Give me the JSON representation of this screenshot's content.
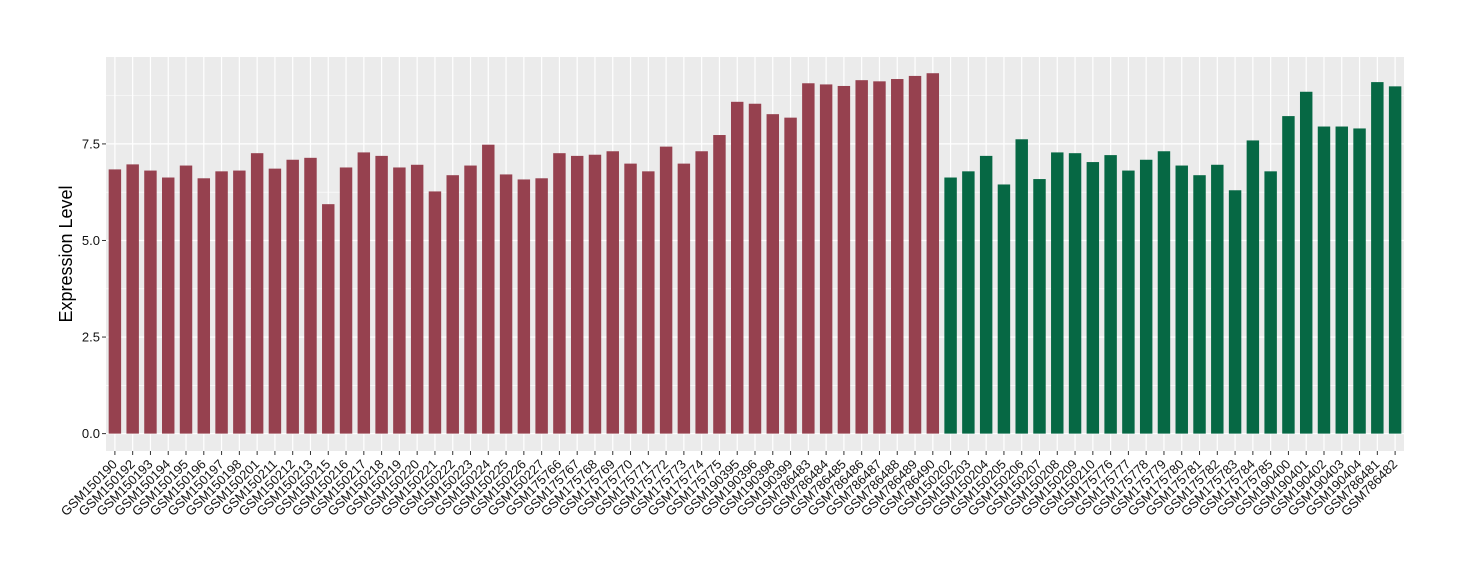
{
  "chart_data": {
    "type": "bar",
    "ylabel": "Expression Level",
    "xlabel": "",
    "ylim": [
      -0.45,
      9.75
    ],
    "yticks": [
      0.0,
      2.5,
      5.0,
      7.5
    ],
    "ytick_labels": [
      "0.0",
      "2.5",
      "5.0",
      "7.5"
    ],
    "grid": true,
    "legend": "none",
    "panel_background": "#ebebeb",
    "grid_color": "#ffffff",
    "colors": {
      "group1": "#96414f",
      "group2": "#066844"
    },
    "categories": [
      "GSM150190",
      "GSM150192",
      "GSM150193",
      "GSM150194",
      "GSM150195",
      "GSM150196",
      "GSM150197",
      "GSM150198",
      "GSM150201",
      "GSM150211",
      "GSM150212",
      "GSM150213",
      "GSM150215",
      "GSM150216",
      "GSM150217",
      "GSM150218",
      "GSM150219",
      "GSM150220",
      "GSM150221",
      "GSM150222",
      "GSM150223",
      "GSM150224",
      "GSM150225",
      "GSM150226",
      "GSM150227",
      "GSM175766",
      "GSM175767",
      "GSM175768",
      "GSM175769",
      "GSM175770",
      "GSM175771",
      "GSM175772",
      "GSM175773",
      "GSM175774",
      "GSM175775",
      "GSM190395",
      "GSM190396",
      "GSM190398",
      "GSM190399",
      "GSM786483",
      "GSM786484",
      "GSM786485",
      "GSM786486",
      "GSM786487",
      "GSM786488",
      "GSM786489",
      "GSM786490",
      "GSM150202",
      "GSM150203",
      "GSM150204",
      "GSM150205",
      "GSM150206",
      "GSM150207",
      "GSM150208",
      "GSM150209",
      "GSM150210",
      "GSM175776",
      "GSM175777",
      "GSM175778",
      "GSM175779",
      "GSM175780",
      "GSM175781",
      "GSM175782",
      "GSM175783",
      "GSM175784",
      "GSM175785",
      "GSM190400",
      "GSM190401",
      "GSM190402",
      "GSM190403",
      "GSM190404",
      "GSM786481",
      "GSM786482"
    ],
    "values": [
      6.84,
      6.97,
      6.81,
      6.63,
      6.94,
      6.61,
      6.79,
      6.81,
      7.26,
      6.86,
      7.09,
      7.14,
      5.94,
      6.89,
      7.28,
      7.19,
      6.89,
      6.96,
      6.27,
      6.69,
      6.94,
      7.48,
      6.71,
      6.58,
      6.61,
      7.26,
      7.19,
      7.22,
      7.31,
      6.99,
      6.79,
      7.43,
      6.99,
      7.31,
      7.73,
      8.59,
      8.54,
      8.27,
      8.18,
      9.07,
      9.04,
      9.0,
      9.15,
      9.12,
      9.18,
      9.26,
      9.33,
      6.63,
      6.79,
      7.19,
      6.45,
      7.62,
      6.59,
      7.28,
      7.26,
      7.03,
      7.21,
      6.81,
      7.09,
      7.31,
      6.94,
      6.69,
      6.96,
      6.3,
      7.59,
      6.79,
      8.22,
      8.85,
      7.95,
      7.95,
      7.9,
      9.1,
      8.99
    ],
    "groups": [
      1,
      1,
      1,
      1,
      1,
      1,
      1,
      1,
      1,
      1,
      1,
      1,
      1,
      1,
      1,
      1,
      1,
      1,
      1,
      1,
      1,
      1,
      1,
      1,
      1,
      1,
      1,
      1,
      1,
      1,
      1,
      1,
      1,
      1,
      1,
      1,
      1,
      1,
      1,
      1,
      1,
      1,
      1,
      1,
      1,
      1,
      1,
      2,
      2,
      2,
      2,
      2,
      2,
      2,
      2,
      2,
      2,
      2,
      2,
      2,
      2,
      2,
      2,
      2,
      2,
      2,
      2,
      2,
      2,
      2,
      2,
      2,
      2
    ]
  }
}
